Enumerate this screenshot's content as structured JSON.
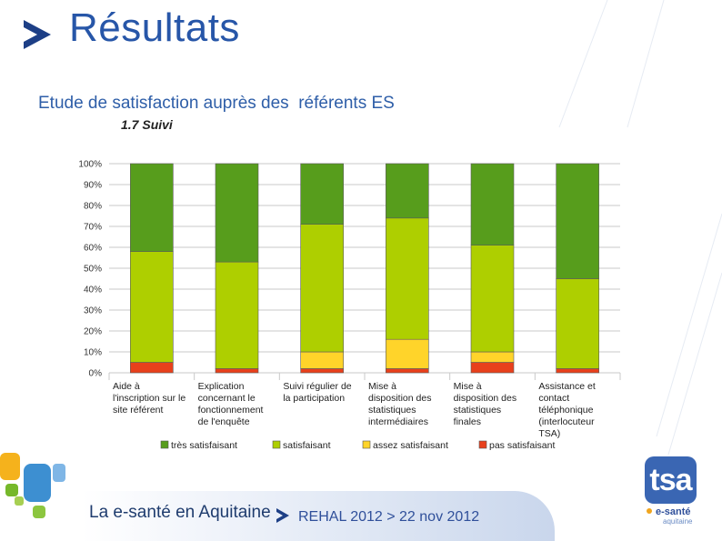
{
  "header": {
    "title": "Résultats",
    "subtitle": "Etude de satisfaction auprès des  référents ES",
    "section": "1.7   Suivi",
    "chevron_icon": "chevron-right-icon",
    "accent_color": "#2756a8"
  },
  "chart_data": {
    "type": "bar",
    "stacked": true,
    "categories": [
      [
        "Aide à",
        "l'inscription sur le",
        "site référent"
      ],
      [
        "Explication",
        "concernant le",
        "fonctionnement",
        "de l'enquête"
      ],
      [
        "Suivi régulier de",
        "la participation"
      ],
      [
        "Mise à",
        "disposition des",
        "statistiques",
        "intermédiaires"
      ],
      [
        "Mise à",
        "disposition des",
        "statistiques",
        "finales"
      ],
      [
        "Assistance et",
        "contact",
        "téléphonique",
        "(interlocuteur",
        "TSA)"
      ]
    ],
    "series": [
      {
        "name": "pas satisfaisant",
        "color": "#e8401c",
        "values": [
          5,
          2,
          2,
          2,
          5,
          2
        ]
      },
      {
        "name": "assez satisfaisant",
        "color": "#ffd42a",
        "values": [
          0,
          0,
          8,
          14,
          5,
          0
        ]
      },
      {
        "name": "satisfaisant",
        "color": "#aecf00",
        "values": [
          53,
          51,
          61,
          58,
          51,
          43
        ]
      },
      {
        "name": "très satisfaisant",
        "color": "#579d1c",
        "values": [
          42,
          47,
          29,
          26,
          39,
          55
        ]
      }
    ],
    "legend_order": [
      "très satisfaisant",
      "satisfaisant",
      "assez satisfaisant",
      "pas satisfaisant"
    ],
    "y_ticks": [
      "0%",
      "10%",
      "20%",
      "30%",
      "40%",
      "50%",
      "60%",
      "70%",
      "80%",
      "90%",
      "100%"
    ],
    "ylim": [
      0,
      100
    ],
    "grid": true,
    "legend_position": "bottom"
  },
  "footer": {
    "brand": "La e-santé en Aquitaine",
    "event": "REHAL 2012 > 22 nov 2012",
    "logo_text": "tsa",
    "logo_line1": "e-santé",
    "logo_line2": "aquitaine"
  }
}
